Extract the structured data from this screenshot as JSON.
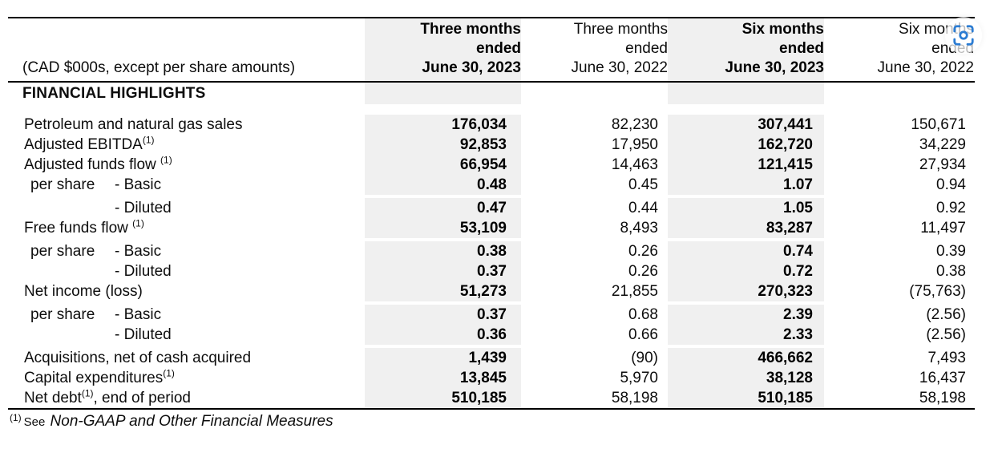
{
  "table": {
    "corner_label": "(CAD $000s, except per share amounts)",
    "section_title": "FINANCIAL HIGHLIGHTS",
    "columns": [
      {
        "title": "Three months\nended\nJune 30, 2023",
        "emphasis": true
      },
      {
        "title": "Three months\nended\nJune 30, 2022",
        "emphasis": false
      },
      {
        "title": "Six months\nended\nJune 30, 2023",
        "emphasis": true
      },
      {
        "title": "Six months\nended\nJune 30, 2022",
        "emphasis": false
      }
    ],
    "rows": [
      {
        "label": {
          "pre": "Petroleum and natural gas sales"
        },
        "values": [
          "176,034",
          "82,230",
          "307,441",
          "150,671"
        ]
      },
      {
        "label": {
          "pre": "Adjusted EBITDA",
          "sup": "(1)"
        },
        "values": [
          "92,853",
          "17,950",
          "162,720",
          "34,229"
        ]
      },
      {
        "label": {
          "pre": "Adjusted funds flow ",
          "sup": "(1)"
        },
        "values": [
          "66,954",
          "14,463",
          "121,415",
          "27,934"
        ]
      },
      {
        "label": {
          "sub": "per share",
          "dash": "- Basic"
        },
        "values": [
          "0.48",
          "0.45",
          "1.07",
          "0.94"
        ],
        "gap_after": true
      },
      {
        "label": {
          "dash": "- Diluted"
        },
        "values": [
          "0.47",
          "0.44",
          "1.05",
          "0.92"
        ]
      },
      {
        "label": {
          "pre": "Free funds flow ",
          "sup": "(1)"
        },
        "values": [
          "53,109",
          "8,493",
          "83,287",
          "11,497"
        ],
        "gap_after": true
      },
      {
        "label": {
          "sub": "per share",
          "dash": "- Basic"
        },
        "values": [
          "0.38",
          "0.26",
          "0.74",
          "0.39"
        ]
      },
      {
        "label": {
          "dash": "- Diluted"
        },
        "values": [
          "0.37",
          "0.26",
          "0.72",
          "0.38"
        ]
      },
      {
        "label": {
          "pre": "Net income (loss)"
        },
        "values": [
          "51,273",
          "21,855",
          "270,323",
          "(75,763)"
        ],
        "gap_after": true
      },
      {
        "label": {
          "sub": "per share",
          "dash": "- Basic"
        },
        "values": [
          "0.37",
          "0.68",
          "2.39",
          "(2.56)"
        ]
      },
      {
        "label": {
          "dash": "- Diluted"
        },
        "values": [
          "0.36",
          "0.66",
          "2.33",
          "(2.56)"
        ],
        "gap_after": true
      },
      {
        "label": {
          "pre": "Acquisitions, net of cash acquired"
        },
        "values": [
          "1,439",
          "(90)",
          "466,662",
          "7,493"
        ]
      },
      {
        "label": {
          "pre": "Capital expenditures",
          "sup": "(1)"
        },
        "values": [
          "13,845",
          "5,970",
          "38,128",
          "16,437"
        ]
      },
      {
        "label": {
          "pre": "Net debt",
          "sup": "(1)",
          "post": ", end of period"
        },
        "values": [
          "510,185",
          "58,198",
          "510,185",
          "58,198"
        ]
      }
    ],
    "footnote": {
      "marker": "(1)",
      "lead": "See",
      "reference": "Non-GAAP and Other Financial Measures"
    }
  },
  "overlay": {
    "icon": "visual-search"
  },
  "colors": {
    "shade": "#f0f0f0",
    "rule": "#000000",
    "text": "#0d0d0d",
    "icon_blue": "#2b7cd3"
  }
}
